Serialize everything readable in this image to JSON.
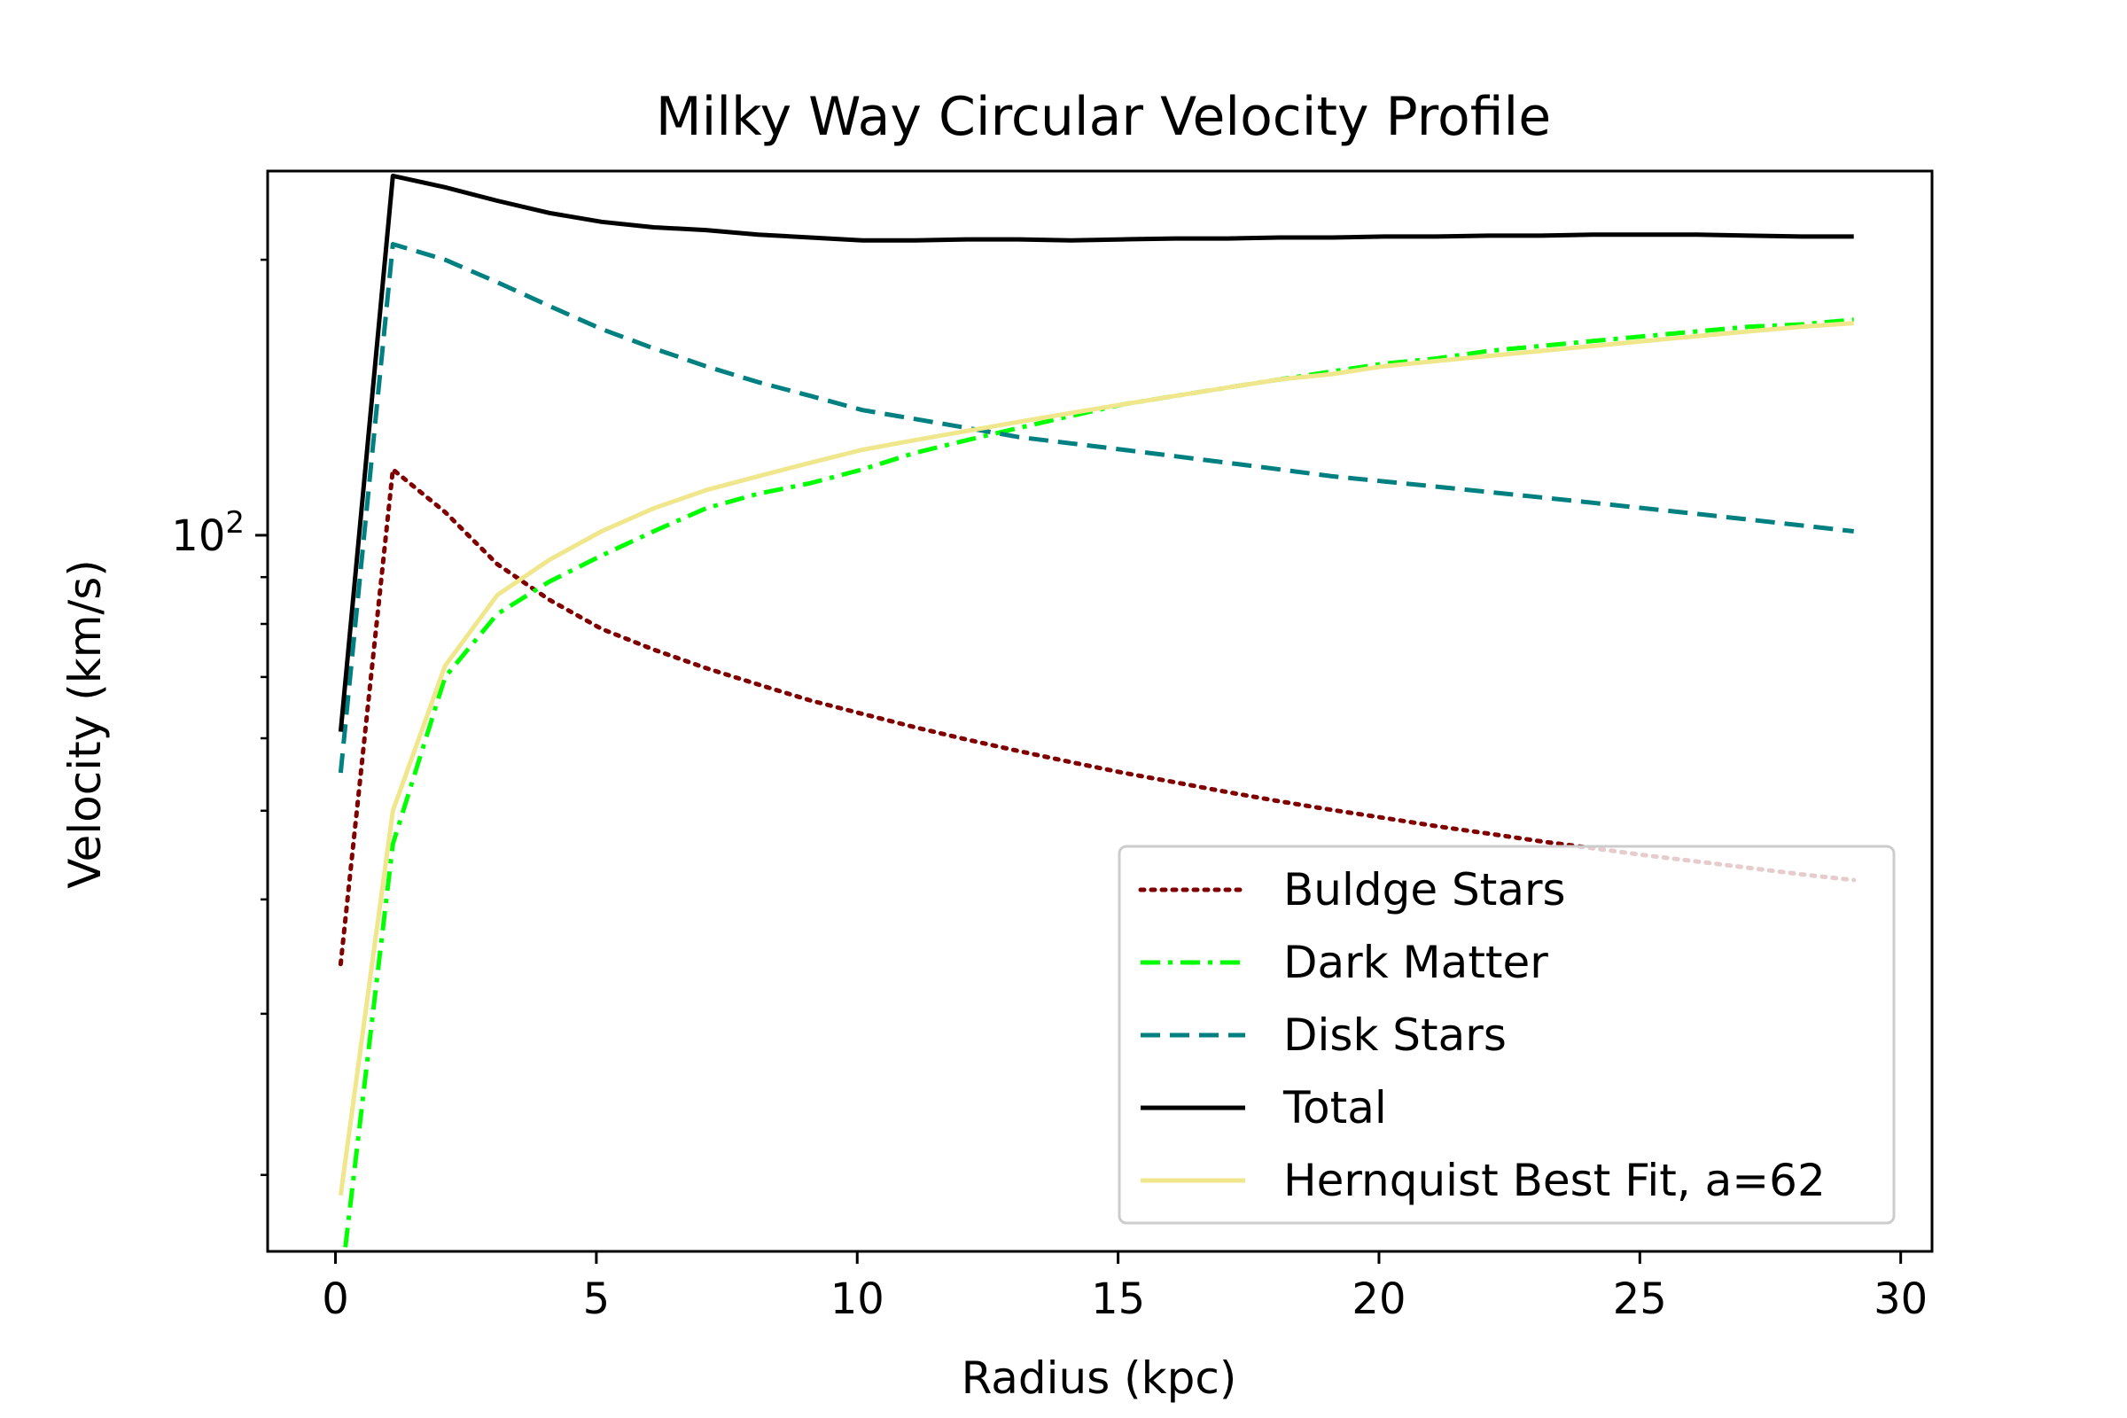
{
  "chart_data": {
    "type": "line",
    "title": "Milky Way Circular Velocity Profile",
    "xlabel": "Radius (kpc)",
    "ylabel": "Velocity (km/s)",
    "xlim": [
      -1.3,
      30.6
    ],
    "ylim": [
      16.5,
      250
    ],
    "yscale": "log",
    "grid": false,
    "legend_position": "lower-right",
    "x_ticks": [
      {
        "value": 0,
        "label": "0"
      },
      {
        "value": 5,
        "label": "5"
      },
      {
        "value": 10,
        "label": "10"
      },
      {
        "value": 15,
        "label": "15"
      },
      {
        "value": 20,
        "label": "20"
      },
      {
        "value": 25,
        "label": "25"
      },
      {
        "value": 30,
        "label": "30"
      }
    ],
    "y_major_ticks": [
      {
        "value": 100,
        "label_base": "10",
        "label_exp": "2"
      }
    ],
    "y_minor_ticks": [
      20,
      30,
      40,
      50,
      60,
      70,
      80,
      90,
      200
    ],
    "x": [
      0.1,
      1.1,
      2.1,
      3.1,
      4.1,
      5.1,
      6.1,
      7.1,
      8.1,
      9.1,
      10.1,
      11.1,
      12.1,
      13.1,
      14.1,
      15.1,
      16.1,
      17.1,
      18.1,
      19.1,
      20.1,
      21.1,
      22.1,
      23.1,
      24.1,
      25.1,
      26.1,
      27.1,
      28.1,
      29.1
    ],
    "series": [
      {
        "name": "Buldge Stars",
        "color": "#800000",
        "style": "dotted",
        "values": [
          34,
          118,
          106,
          93,
          85,
          79,
          75,
          71.6,
          68.7,
          66,
          63.8,
          61.7,
          59.8,
          58.1,
          56.5,
          55,
          53.7,
          52.4,
          51.2,
          50.1,
          49.1,
          48.1,
          47.2,
          46.3,
          45.5,
          44.7,
          44,
          43.3,
          42.6,
          42
        ]
      },
      {
        "name": "Dark Matter",
        "color": "#00ff00",
        "style": "dashdot",
        "values": [
          null,
          46,
          70,
          82,
          89,
          95,
          101,
          107,
          111,
          114,
          118,
          123,
          127,
          131,
          135,
          139,
          142,
          145,
          148,
          151,
          154,
          156,
          159,
          161,
          163,
          165,
          167,
          169,
          170,
          172
        ]
      },
      {
        "name": "Disk Stars",
        "color": "#008080",
        "style": "dashed",
        "values": [
          55,
          208,
          200,
          189,
          178,
          168,
          160,
          153,
          147,
          142,
          137,
          134,
          131,
          128,
          126,
          124,
          122,
          120,
          118,
          116,
          114.5,
          113,
          111.5,
          110,
          108.5,
          107,
          105.5,
          104,
          102.5,
          101
        ]
      },
      {
        "name": "Total",
        "color": "#000000",
        "style": "solid",
        "values": [
          61,
          247,
          240,
          232,
          225,
          220,
          217,
          215.5,
          213,
          211.5,
          210,
          210,
          210.5,
          210.5,
          210,
          210.5,
          211,
          211,
          211.5,
          211.5,
          212,
          212,
          212.5,
          212.5,
          213,
          213,
          213,
          212.5,
          212,
          212
        ]
      },
      {
        "name": "Hernquist Best Fit, a=62",
        "color": "#f0e68c",
        "style": "solid",
        "values": [
          19,
          50,
          72,
          86,
          94,
          101,
          107,
          112,
          116,
          120,
          124,
          127,
          130,
          133,
          136,
          139,
          142,
          145,
          148,
          150,
          153,
          155,
          157,
          159,
          161,
          163,
          165,
          167,
          169,
          170.5
        ]
      }
    ]
  }
}
